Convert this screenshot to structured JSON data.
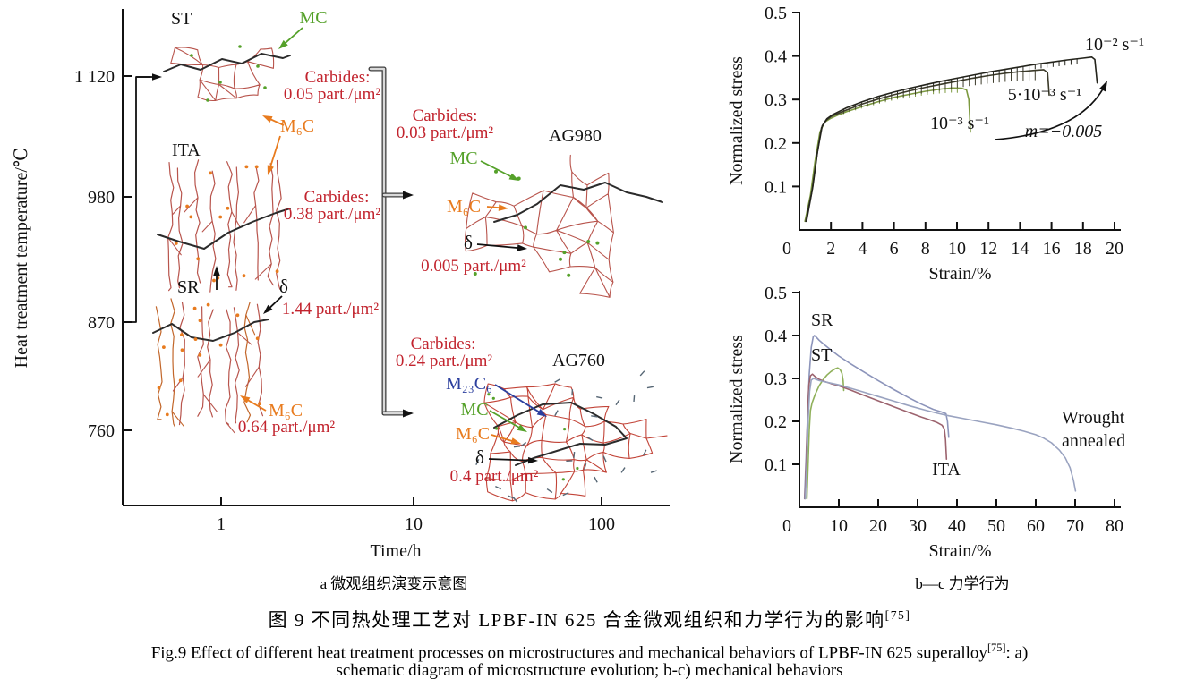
{
  "figure": {
    "colors": {
      "red": "#c2242e",
      "green": "#55a12a",
      "orange": "#e87b1e",
      "blue": "#2c3f9e",
      "black": "#111111",
      "grain_red": "#b8544c",
      "grain_red_bright": "#c24438",
      "boundary_black": "#2b2b2b",
      "delta_dash": "#566674",
      "bracket_gray": "#3f3f3f"
    },
    "panel_a": {
      "ylabel": "Heat treatment temperature/℃",
      "xlabel": "Time/h",
      "ytick_labels": [
        "1 120",
        "980",
        "870",
        "760"
      ],
      "xtick_labels": [
        "1",
        "10",
        "100"
      ],
      "structures": {
        "st": "ST",
        "ita": "ITA",
        "sr": "SR",
        "ag980": "AG980",
        "ag760": "AG760"
      },
      "annotations": {
        "st_mc": "MC",
        "st_carbides_1": "Carbides:",
        "st_carbides_2": "0.05 part./μm²",
        "st_m6c": "M₆C",
        "ita_carbides_1": "Carbides:",
        "ita_carbides_2": "0.38 part./μm²",
        "sr_delta": "δ",
        "sr_delta_val": "1.44 part./μm²",
        "sr_m6c": "M₆C",
        "sr_m6c_val": "0.64 part./μm²",
        "ag980_carbides_1": "Carbides:",
        "ag980_carbides_2": "0.03 part./μm²",
        "ag980_mc": "MC",
        "ag980_m6c": "M₆C",
        "ag980_delta": "δ",
        "ag980_delta_val": "0.005 part./μm²",
        "ag760_carbides_1": "Carbides:",
        "ag760_carbides_2": "0.24 part./μm²",
        "ag760_m23c6": "M₂₃C₆",
        "ag760_mc": "MC",
        "ag760_m6c": "M₆C",
        "ag760_delta": "δ",
        "ag760_delta_val": "0.4 part./μm²"
      }
    },
    "captions": {
      "sub_a": "a 微观组织演变示意图",
      "sub_bc": "b—c 力学行为",
      "zh": "图 9  不同热处理工艺对 LPBF-IN 625 合金微观组织和力学行为的影响",
      "zh_ref": "[75]",
      "en_line1": "Fig.9 Effect of different heat treatment processes on microstructures and mechanical behaviors of LPBF-IN 625 superalloy",
      "en_ref": "[75]",
      "en_tail": ": a)",
      "en_line2": "schematic diagram of microstructure evolution; b-c) mechanical behaviors"
    }
  },
  "chart_data": [
    {
      "id": "b",
      "type": "line",
      "title": "",
      "xlabel": "Strain/%",
      "ylabel": "Normalized stress",
      "xlim": [
        0,
        20
      ],
      "ylim": [
        0,
        0.5
      ],
      "grid": false,
      "legend_position": "none",
      "xticks": [
        0,
        2,
        4,
        6,
        8,
        10,
        12,
        14,
        16,
        18,
        20
      ],
      "yticks": [
        0.1,
        0.2,
        0.3,
        0.4,
        0.5
      ],
      "annotations": {
        "rate_high": "10⁻² s⁻¹",
        "rate_mid": "5·10⁻³ s⁻¹",
        "rate_low": "10⁻³ s⁻¹",
        "m_label": "m=−0.005"
      },
      "series": [
        {
          "name": "10⁻³ s⁻¹",
          "color": "#7d9a40",
          "serrated": true,
          "points": [
            [
              0.35,
              0.02
            ],
            [
              0.7,
              0.08
            ],
            [
              1.0,
              0.16
            ],
            [
              1.3,
              0.225
            ],
            [
              1.6,
              0.248
            ],
            [
              2.0,
              0.257
            ],
            [
              2.5,
              0.265
            ],
            [
              3,
              0.272
            ],
            [
              4,
              0.284
            ],
            [
              5,
              0.295
            ],
            [
              6,
              0.305
            ],
            [
              7,
              0.312
            ],
            [
              8,
              0.319
            ],
            [
              9,
              0.324
            ],
            [
              9.7,
              0.3265
            ],
            [
              10.3,
              0.326
            ],
            [
              10.6,
              0.322
            ],
            [
              10.75,
              0.3
            ],
            [
              10.85,
              0.225
            ]
          ]
        },
        {
          "name": "5·10⁻³ s⁻¹",
          "color": "#3b3a29",
          "serrated": true,
          "points": [
            [
              0.4,
              0.02
            ],
            [
              0.8,
              0.09
            ],
            [
              1.1,
              0.17
            ],
            [
              1.4,
              0.235
            ],
            [
              1.7,
              0.252
            ],
            [
              2.0,
              0.261
            ],
            [
              3,
              0.276
            ],
            [
              4,
              0.29
            ],
            [
              5,
              0.301
            ],
            [
              6,
              0.311
            ],
            [
              7,
              0.32
            ],
            [
              8,
              0.328
            ],
            [
              9,
              0.335
            ],
            [
              10,
              0.342
            ],
            [
              11,
              0.349
            ],
            [
              12,
              0.355
            ],
            [
              13,
              0.36
            ],
            [
              14,
              0.364
            ],
            [
              15,
              0.367
            ],
            [
              15.5,
              0.3685
            ],
            [
              15.75,
              0.362
            ],
            [
              15.85,
              0.31
            ]
          ]
        },
        {
          "name": "10⁻² s⁻¹",
          "color": "#24241c",
          "serrated": true,
          "points": [
            [
              0.45,
              0.02
            ],
            [
              0.85,
              0.1
            ],
            [
              1.15,
              0.18
            ],
            [
              1.45,
              0.24
            ],
            [
              1.75,
              0.256
            ],
            [
              2.1,
              0.265
            ],
            [
              3,
              0.281
            ],
            [
              4,
              0.295
            ],
            [
              5,
              0.307
            ],
            [
              6,
              0.317
            ],
            [
              7,
              0.326
            ],
            [
              8,
              0.334
            ],
            [
              9,
              0.342
            ],
            [
              10,
              0.349
            ],
            [
              11,
              0.356
            ],
            [
              12,
              0.363
            ],
            [
              13,
              0.369
            ],
            [
              14,
              0.375
            ],
            [
              15,
              0.381
            ],
            [
              16,
              0.386
            ],
            [
              17,
              0.391
            ],
            [
              18,
              0.395
            ],
            [
              18.55,
              0.3975
            ],
            [
              18.75,
              0.392
            ],
            [
              18.9,
              0.338
            ]
          ]
        }
      ]
    },
    {
      "id": "c",
      "type": "line",
      "title": "",
      "xlabel": "Strain/%",
      "ylabel": "Normalized stress",
      "xlim": [
        0,
        80
      ],
      "ylim": [
        0,
        0.5
      ],
      "grid": false,
      "legend_position": "none",
      "xticks": [
        0,
        10,
        20,
        30,
        40,
        50,
        60,
        70,
        80
      ],
      "yticks": [
        0.1,
        0.2,
        0.3,
        0.4,
        0.5
      ],
      "annotations": {
        "sr": "SR",
        "st": "ST",
        "ita": "ITA",
        "wrought_1": "Wrought",
        "wrought_2": "annealed"
      },
      "series": [
        {
          "name": "SR",
          "color": "#8c94ba",
          "serrated": false,
          "points": [
            [
              1.3,
              0.02
            ],
            [
              1.7,
              0.12
            ],
            [
              2.1,
              0.22
            ],
            [
              2.5,
              0.31
            ],
            [
              3.0,
              0.372
            ],
            [
              3.5,
              0.397
            ],
            [
              3.8,
              0.4
            ],
            [
              4.3,
              0.396
            ],
            [
              5,
              0.389
            ],
            [
              6,
              0.381
            ],
            [
              8,
              0.366
            ],
            [
              10,
              0.352
            ],
            [
              13,
              0.334
            ],
            [
              16,
              0.317
            ],
            [
              20,
              0.295
            ],
            [
              24,
              0.274
            ],
            [
              28,
              0.254
            ],
            [
              31,
              0.24
            ],
            [
              34,
              0.228
            ],
            [
              36,
              0.222
            ],
            [
              37.2,
              0.218
            ],
            [
              37.6,
              0.2
            ],
            [
              37.9,
              0.163
            ]
          ]
        },
        {
          "name": "ST",
          "color": "#8fb05a",
          "serrated": false,
          "points": [
            [
              1.9,
              0.02
            ],
            [
              2.2,
              0.1
            ],
            [
              2.5,
              0.18
            ],
            [
              2.8,
              0.225
            ],
            [
              3.2,
              0.243
            ],
            [
              4,
              0.263
            ],
            [
              5,
              0.283
            ],
            [
              6,
              0.297
            ],
            [
              7,
              0.308
            ],
            [
              8,
              0.316
            ],
            [
              9,
              0.322
            ],
            [
              9.7,
              0.3245
            ],
            [
              10.3,
              0.321
            ],
            [
              10.8,
              0.312
            ],
            [
              11.1,
              0.295
            ],
            [
              11.25,
              0.272
            ]
          ]
        },
        {
          "name": "ITA",
          "color": "#9c636e",
          "serrated": false,
          "points": [
            [
              1.4,
              0.02
            ],
            [
              1.8,
              0.12
            ],
            [
              2.1,
              0.22
            ],
            [
              2.4,
              0.285
            ],
            [
              2.8,
              0.306
            ],
            [
              3.3,
              0.31
            ],
            [
              4,
              0.304
            ],
            [
              5,
              0.298
            ],
            [
              6,
              0.294
            ],
            [
              8,
              0.288
            ],
            [
              10,
              0.283
            ],
            [
              13,
              0.273
            ],
            [
              16,
              0.262
            ],
            [
              20,
              0.248
            ],
            [
              24,
              0.234
            ],
            [
              28,
              0.22
            ],
            [
              31,
              0.21
            ],
            [
              33,
              0.204
            ],
            [
              35,
              0.197
            ],
            [
              36.2,
              0.191
            ],
            [
              36.8,
              0.182
            ],
            [
              37.1,
              0.158
            ],
            [
              37.35,
              0.112
            ]
          ]
        },
        {
          "name": "Wrought annealed",
          "color": "#9aa3c0",
          "serrated": false,
          "points": [
            [
              1.5,
              0.02
            ],
            [
              1.9,
              0.11
            ],
            [
              2.2,
              0.2
            ],
            [
              2.6,
              0.27
            ],
            [
              3.0,
              0.296
            ],
            [
              3.6,
              0.3
            ],
            [
              5,
              0.295
            ],
            [
              8,
              0.289
            ],
            [
              10,
              0.285
            ],
            [
              13,
              0.277
            ],
            [
              16,
              0.269
            ],
            [
              20,
              0.258
            ],
            [
              24,
              0.247
            ],
            [
              28,
              0.236
            ],
            [
              32,
              0.226
            ],
            [
              35,
              0.219
            ],
            [
              38,
              0.213
            ],
            [
              42,
              0.206
            ],
            [
              46,
              0.199
            ],
            [
              50,
              0.192
            ],
            [
              54,
              0.184
            ],
            [
              57,
              0.177
            ],
            [
              60,
              0.169
            ],
            [
              62,
              0.161
            ],
            [
              64,
              0.15
            ],
            [
              66,
              0.133
            ],
            [
              67.5,
              0.115
            ],
            [
              68.7,
              0.092
            ],
            [
              69.6,
              0.062
            ],
            [
              70.1,
              0.038
            ]
          ]
        }
      ]
    }
  ]
}
